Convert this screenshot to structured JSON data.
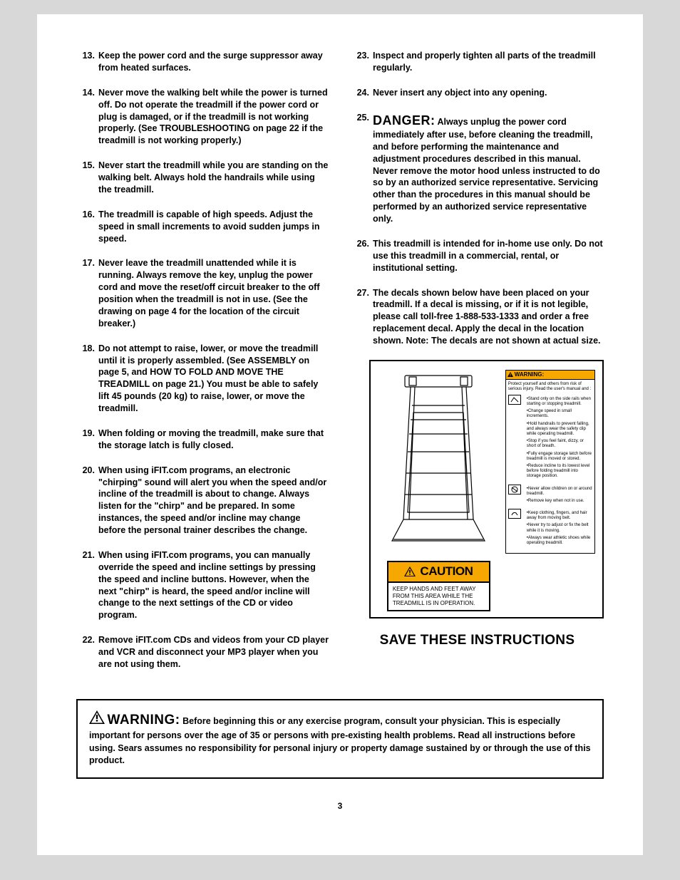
{
  "page_number": "3",
  "left_items": [
    {
      "n": "13.",
      "t": "Keep the power cord and the surge suppressor away from heated surfaces."
    },
    {
      "n": "14.",
      "t": "Never move the walking belt while the power is turned off. Do not operate the treadmill if the power cord or plug is damaged, or if the treadmill is not working properly. (See TROUBLESHOOTING on page 22 if the treadmill is not working properly.)"
    },
    {
      "n": "15.",
      "t": "Never start the treadmill while you are standing on the walking belt. Always hold the handrails while using the treadmill."
    },
    {
      "n": "16.",
      "t": "The treadmill is capable of high speeds. Adjust the speed in small increments to avoid sudden jumps in speed."
    },
    {
      "n": "17.",
      "t": "Never leave the treadmill unattended while it is running. Always remove the key, unplug the power cord and move the reset/off circuit breaker to the off position when the treadmill is not in use. (See the drawing on page 4 for the location of the circuit breaker.)"
    },
    {
      "n": "18.",
      "t": "Do not attempt to raise, lower, or move the treadmill until it is properly assembled. (See ASSEMBLY on page 5, and HOW TO FOLD AND MOVE THE TREADMILL on page 21.) You must be able to safely lift 45 pounds (20 kg) to raise, lower, or move the treadmill."
    },
    {
      "n": "19.",
      "t": "When folding or moving the treadmill, make sure that the storage latch is fully closed."
    },
    {
      "n": "20.",
      "t": "When using iFIT.com programs, an electronic \"chirping\" sound will alert you when the speed and/or incline of the treadmill is about to change. Always listen for the \"chirp\" and be prepared. In some instances, the speed and/or incline may change before the personal trainer describes the change."
    },
    {
      "n": "21.",
      "t": "When using iFIT.com programs, you can manually override the speed and incline settings by pressing the speed and incline buttons. However, when the next \"chirp\" is heard, the speed and/or incline will change to the next settings of the CD or video program."
    },
    {
      "n": "22.",
      "t": "Remove iFIT.com CDs and videos from your CD player and VCR and disconnect your MP3 player when you are not using them."
    }
  ],
  "right_items": [
    {
      "n": "23.",
      "t": "Inspect and properly tighten all parts of the treadmill regularly."
    },
    {
      "n": "24.",
      "t": "Never insert any object into any opening."
    },
    {
      "n": "25.",
      "danger": "DANGER:",
      "t": " Always unplug the power cord immediately after use, before cleaning the treadmill, and before performing the maintenance and adjustment procedures described in this manual. Never remove the motor hood unless instructed to do so by an authorized service representative. Servicing other than the procedures in this manual should be performed by an authorized service representative only."
    },
    {
      "n": "26.",
      "t": "This treadmill is intended for in-home use only. Do not use this treadmill in a commercial, rental, or institutional setting."
    },
    {
      "n": "27.",
      "t": "The decals shown below have been placed on your treadmill. If a decal is missing, or if it is not legible, please call toll-free 1-888-533-1333 and order a free replacement decal. Apply the decal in the location shown. Note: The decals are not shown at actual size."
    }
  ],
  "caution_head": "CAUTION",
  "caution_body": "KEEP HANDS AND FEET AWAY FROM THIS AREA WHILE THE TREADMILL IS IN OPERATION.",
  "warn_head": "WARNING:",
  "warn_intro": "Protect yourself and others from risk of serious injury. Read the user's manual and :",
  "warn_bullets_top": [
    "Stand only on the side rails when starting or stopping treadmill.",
    "Change speed in small increments.",
    "Hold handrails to prevent falling, and always wear the safety clip while operating treadmill.",
    "Stop if you feel faint, dizzy, or short of breath.",
    "Fully engage storage latch before treadmill is moved or stored.",
    "Reduce incline to its lowest level before folding treadmill into storage position."
  ],
  "warn_bullets_mid": [
    "Never allow children on or around treadmill.",
    "Remove key when not in use."
  ],
  "warn_bullets_bot": [
    "Keep clothing, fingers, and hair away from moving belt.",
    "Never try to adjust or fix the belt while it is moving.",
    "Always wear athletic shoes while operating treadmill."
  ],
  "save": "SAVE THESE INSTRUCTIONS",
  "footer_big": "WARNING:",
  "footer_text": " Before beginning this or any exercise program, consult your physician. This is especially important for persons over the age of 35 or persons with pre-existing health problems. Read all instructions before using. Sears assumes no responsibility for personal injury or property damage sustained by or through the use of this product.",
  "colors": {
    "caution_bg": "#f7a800",
    "border": "#000000",
    "page_bg": "#ffffff",
    "outer_bg": "#d8d8d8"
  }
}
